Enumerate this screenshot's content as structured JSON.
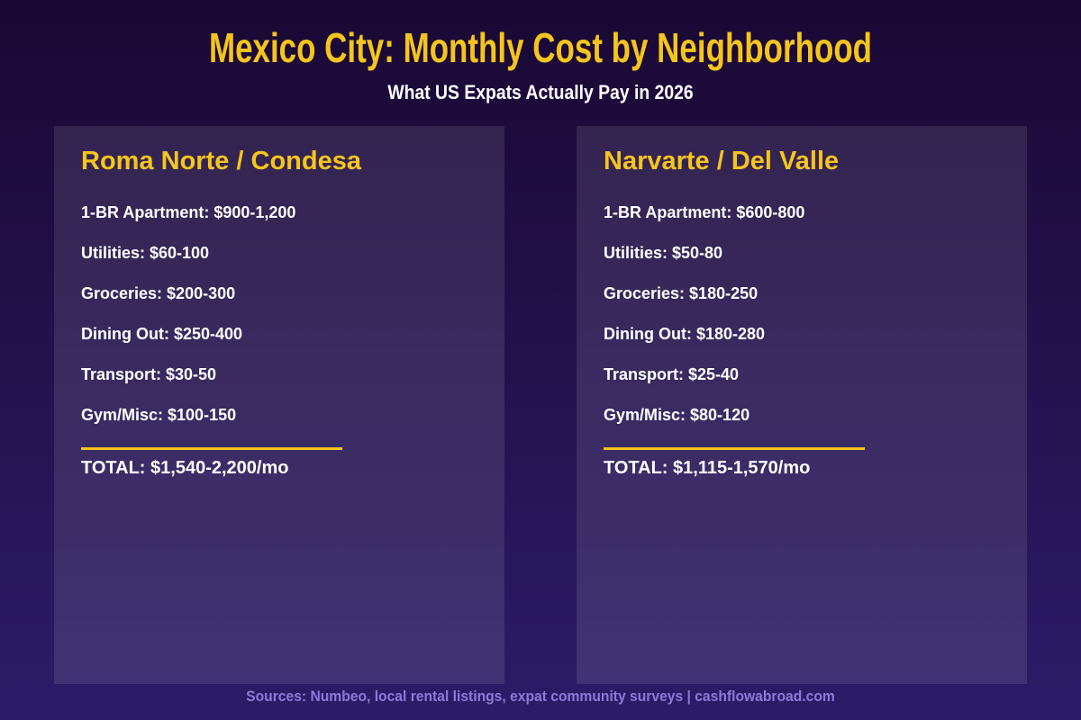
{
  "page": {
    "title": "Mexico City: Monthly Cost by Neighborhood",
    "subtitle": "What US Expats Actually Pay in 2026",
    "footer": "Sources: Numbeo, local rental listings, expat community surveys | cashflowabroad.com"
  },
  "colors": {
    "bg_top": "#1A0833",
    "bg_bottom": "#2C1C68",
    "card_bg": "rgba(255,255,255,0.10)",
    "gold": "#F5C51C",
    "text": "#FFFFFF",
    "footer_text": "#8D7AD8"
  },
  "cards": [
    {
      "name": "Roma Norte / Condesa",
      "items": [
        "1-BR Apartment: $900-1,200",
        "Utilities: $60-100",
        "Groceries: $200-300",
        "Dining Out: $250-400",
        "Transport: $30-50",
        "Gym/Misc: $100-150"
      ],
      "total": "TOTAL: $1,540-2,200/mo"
    },
    {
      "name": "Narvarte / Del Valle",
      "items": [
        "1-BR Apartment: $600-800",
        "Utilities: $50-80",
        "Groceries: $180-250",
        "Dining Out: $180-280",
        "Transport: $25-40",
        "Gym/Misc: $80-120"
      ],
      "total": "TOTAL: $1,115-1,570/mo"
    }
  ],
  "chart_data": {
    "type": "table",
    "title": "Mexico City: Monthly Cost by Neighborhood",
    "subtitle": "What US Expats Actually Pay in 2026",
    "categories": [
      "1-BR Apartment",
      "Utilities",
      "Groceries",
      "Dining Out",
      "Transport",
      "Gym/Misc",
      "TOTAL"
    ],
    "series": [
      {
        "name": "Roma Norte / Condesa",
        "values": [
          "$900-1,200",
          "$60-100",
          "$200-300",
          "$250-400",
          "$30-50",
          "$100-150",
          "$1,540-2,200/mo"
        ],
        "ranges_usd": [
          [
            900,
            1200
          ],
          [
            60,
            100
          ],
          [
            200,
            300
          ],
          [
            250,
            400
          ],
          [
            30,
            50
          ],
          [
            100,
            150
          ],
          [
            1540,
            2200
          ]
        ]
      },
      {
        "name": "Narvarte / Del Valle",
        "values": [
          "$600-800",
          "$50-80",
          "$180-250",
          "$180-280",
          "$25-40",
          "$80-120",
          "$1,115-1,570/mo"
        ],
        "ranges_usd": [
          [
            600,
            800
          ],
          [
            50,
            80
          ],
          [
            180,
            250
          ],
          [
            180,
            280
          ],
          [
            25,
            40
          ],
          [
            80,
            120
          ],
          [
            1115,
            1570
          ]
        ]
      }
    ],
    "source": "Sources: Numbeo, local rental listings, expat community surveys | cashflowabroad.com"
  }
}
